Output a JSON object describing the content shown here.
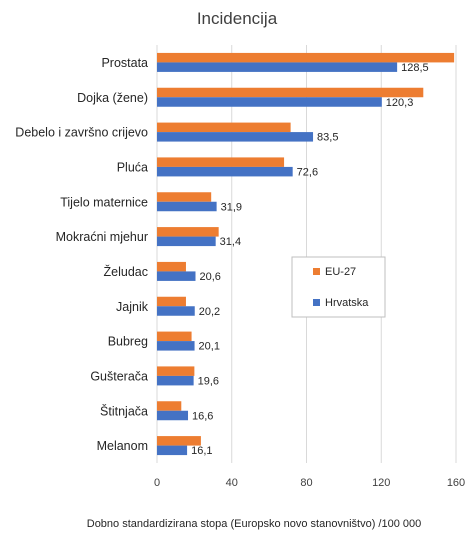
{
  "chart_data": {
    "type": "bar",
    "orientation": "horizontal",
    "title": "Incidencija",
    "xlabel": "Dobno standardizirana stopa (Europsko novo stanovništvo) /100 000",
    "ylabel": "",
    "xlim": [
      0,
      160
    ],
    "xticks": [
      0,
      40,
      80,
      120,
      160
    ],
    "grid": true,
    "legend_position": "right",
    "categories": [
      "Prostata",
      "Dojka (žene)",
      "Debelo i završno crijevo",
      "Pluća",
      "Tijelo maternice",
      "Mokraćni mjehur",
      "Želudac",
      "Jajnik",
      "Bubreg",
      "Gušterača",
      "Štitnjača",
      "Melanom"
    ],
    "series": [
      {
        "name": "EU-27",
        "color": "#ED7D31",
        "values": [
          159,
          142.5,
          71.5,
          68,
          29,
          33,
          15.5,
          15.5,
          18.5,
          20,
          13,
          23.5
        ]
      },
      {
        "name": "Hrvatska",
        "color": "#4472C4",
        "values": [
          128.5,
          120.3,
          83.5,
          72.6,
          31.9,
          31.4,
          20.6,
          20.2,
          20.1,
          19.6,
          16.6,
          16.1
        ],
        "labels": [
          "128,5",
          "120,3",
          "83,5",
          "72,6",
          "31,9",
          "31,4",
          "20,6",
          "20,2",
          "20,1",
          "19,6",
          "16,6",
          "16,1"
        ]
      }
    ]
  }
}
